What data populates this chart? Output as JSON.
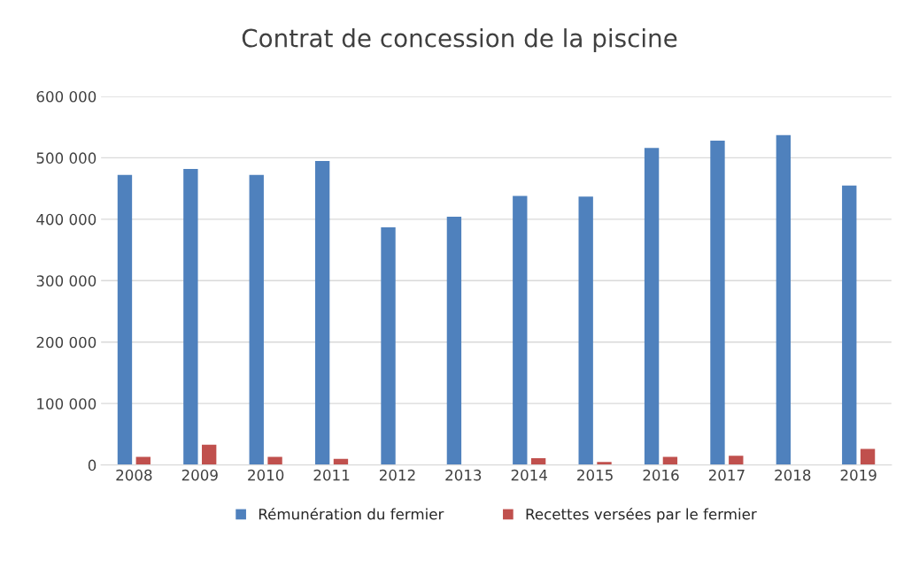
{
  "chart_data": {
    "type": "bar",
    "title": "Contrat de concession de la piscine",
    "categories": [
      "2008",
      "2009",
      "2010",
      "2011",
      "2012",
      "2013",
      "2014",
      "2015",
      "2016",
      "2017",
      "2018",
      "2019"
    ],
    "series": [
      {
        "name": "Rémunération du fermier",
        "color": "#4f81bd",
        "values": [
          472000,
          482000,
          472000,
          495000,
          387000,
          404000,
          438000,
          437000,
          516000,
          528000,
          537000,
          455000
        ]
      },
      {
        "name": "Recettes versées par le fermier",
        "color": "#c0504d",
        "values": [
          13000,
          33000,
          13000,
          10000,
          null,
          null,
          11000,
          5000,
          13000,
          15000,
          null,
          26000
        ]
      }
    ],
    "ylim": [
      0,
      600000
    ],
    "yticks": [
      0,
      {
        "value": 100000,
        "label": "100 000"
      },
      {
        "value": 200000,
        "label": "200 000"
      },
      {
        "value": 300000,
        "label": "300 000"
      },
      {
        "value": 400000,
        "label": "400 000"
      },
      {
        "value": 500000,
        "label": "500 000"
      },
      {
        "value": 600000,
        "label": "600 000"
      }
    ],
    "grid": "y",
    "legend": "bottom"
  }
}
